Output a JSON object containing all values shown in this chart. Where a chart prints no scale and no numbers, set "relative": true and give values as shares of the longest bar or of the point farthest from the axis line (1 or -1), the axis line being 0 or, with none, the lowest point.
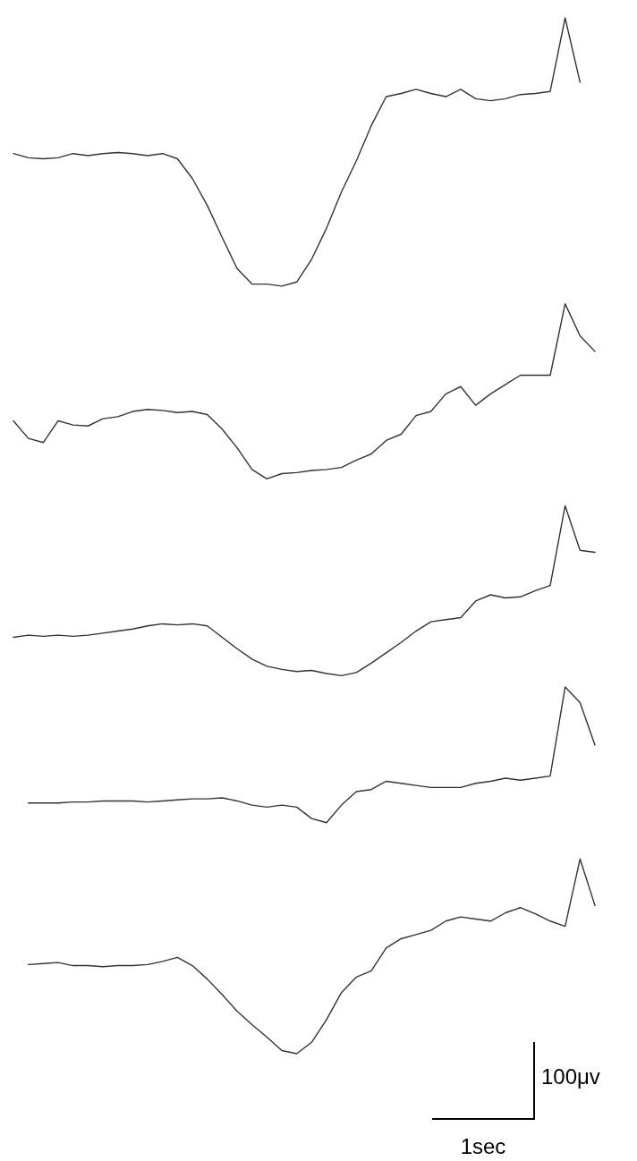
{
  "chart_data": {
    "type": "line",
    "relative": true,
    "categories": [
      null,
      null,
      null,
      null,
      null,
      null,
      null,
      null,
      null,
      null,
      null,
      null,
      null,
      null,
      null,
      null,
      null,
      null,
      null,
      null,
      null,
      null,
      null,
      null,
      null,
      null,
      null,
      null,
      null,
      null,
      null,
      null,
      null,
      null,
      null,
      null,
      null,
      null,
      null,
      null
    ],
    "series": [
      {
        "color": "#333333",
        "values": [
          0.869,
          0.865,
          0.864,
          0.865,
          0.869,
          0.867,
          0.869,
          0.87,
          0.869,
          0.867,
          0.869,
          0.864,
          0.845,
          0.819,
          0.788,
          0.758,
          0.743,
          0.743,
          0.741,
          0.745,
          0.767,
          0.797,
          0.832,
          0.862,
          0.896,
          0.924,
          0.927,
          0.931,
          0.927,
          0.924,
          0.931,
          0.922,
          0.92,
          0.922,
          0.926,
          0.927,
          0.929,
          1.0,
          0.938,
          null
        ]
      },
      {
        "color": "#333333",
        "values": [
          0.611,
          0.594,
          0.59,
          0.611,
          0.607,
          0.606,
          0.613,
          0.615,
          0.62,
          0.622,
          0.621,
          0.619,
          0.62,
          0.617,
          0.603,
          0.585,
          0.564,
          0.555,
          0.56,
          0.561,
          0.563,
          0.564,
          0.566,
          0.573,
          0.579,
          0.592,
          0.598,
          0.616,
          0.62,
          0.637,
          0.644,
          0.626,
          0.637,
          0.646,
          0.655,
          0.655,
          0.655,
          0.724,
          0.693,
          0.678
        ]
      },
      {
        "color": "#333333",
        "values": [
          0.402,
          0.404,
          0.403,
          0.404,
          0.403,
          0.404,
          0.406,
          0.408,
          0.41,
          0.413,
          0.415,
          0.414,
          0.415,
          0.413,
          0.402,
          0.391,
          0.381,
          0.374,
          0.371,
          0.369,
          0.37,
          0.367,
          0.365,
          0.368,
          0.377,
          0.387,
          0.397,
          0.408,
          0.417,
          0.419,
          0.421,
          0.437,
          0.443,
          0.44,
          0.441,
          0.447,
          0.452,
          0.529,
          0.486,
          0.484
        ]
      },
      {
        "color": "#333333",
        "values": [
          null,
          0.242,
          0.242,
          0.242,
          0.243,
          0.243,
          0.244,
          0.244,
          0.244,
          0.243,
          0.244,
          0.245,
          0.246,
          0.246,
          0.247,
          0.244,
          0.24,
          0.238,
          0.24,
          0.238,
          0.227,
          0.223,
          0.24,
          0.253,
          0.255,
          0.263,
          0.261,
          0.259,
          0.257,
          0.257,
          0.257,
          0.261,
          0.263,
          0.266,
          0.264,
          0.266,
          0.268,
          0.354,
          0.339,
          0.298
        ]
      },
      {
        "color": "#333333",
        "values": [
          null,
          0.086,
          0.087,
          0.088,
          0.085,
          0.085,
          0.084,
          0.085,
          0.085,
          0.086,
          0.089,
          0.093,
          0.085,
          0.072,
          0.057,
          0.041,
          0.028,
          0.016,
          0.003,
          0,
          0.011,
          0.033,
          0.059,
          0.074,
          0.08,
          0.102,
          0.111,
          0.115,
          0.119,
          0.128,
          0.132,
          0.13,
          0.128,
          0.136,
          0.141,
          0.135,
          0.128,
          0.123,
          0.188,
          0.143
        ]
      }
    ],
    "annotations": [
      "100μv",
      "1sec"
    ]
  }
}
